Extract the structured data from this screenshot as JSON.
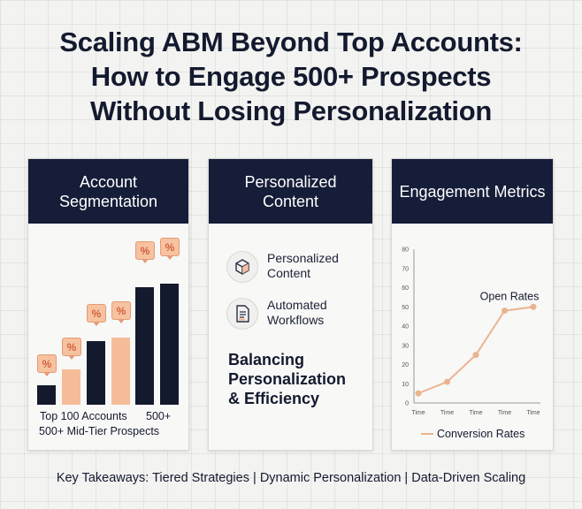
{
  "title": {
    "line1": "Scaling ABM Beyond Top Accounts:",
    "line2": "How to Engage 500+ Prospects",
    "line3": "Without Losing Personalization"
  },
  "segmentation": {
    "header": "Account Segmentation",
    "badge": "%",
    "label_line1": "Top 100 Accounts",
    "label_line1_right": "500+",
    "label_line2": "500+ Mid-Tier Prospects",
    "bar_values": [
      3,
      5.5,
      10,
      10.5,
      18.5,
      19
    ],
    "colors": {
      "navy": "#141a2e",
      "peach": "#f5bc98"
    }
  },
  "content": {
    "header": "Personalized Content",
    "items": [
      {
        "icon": "cube-icon",
        "line1": "Personalized",
        "line2": "Content"
      },
      {
        "icon": "document-icon",
        "line1": "Automated",
        "line2": "Workflows"
      }
    ],
    "balance_line1": "Balancing",
    "balance_line2": "Personalization",
    "balance_line3": "& Efficiency"
  },
  "metrics": {
    "header": "Engagement Metrics",
    "series_label": "Open Rates",
    "legend": "Conversion Rates"
  },
  "chart_data": {
    "type": "line",
    "x": [
      "Time",
      "Time",
      "Time",
      "Time",
      "Time"
    ],
    "series": [
      {
        "name": "Open Rates",
        "values": [
          5,
          11,
          25,
          48,
          50
        ]
      }
    ],
    "yticks": [
      0,
      10,
      20,
      30,
      40,
      50,
      60,
      70,
      80
    ],
    "ylim": [
      0,
      80
    ],
    "legend": "Conversion Rates",
    "line_color": "#eab490"
  },
  "footer": {
    "part1": "Key Takeaways: Tiered Strategies",
    "separator": "|",
    "part2": "Dynamic Personalization",
    "part3": "Data-Driven Scaling"
  }
}
